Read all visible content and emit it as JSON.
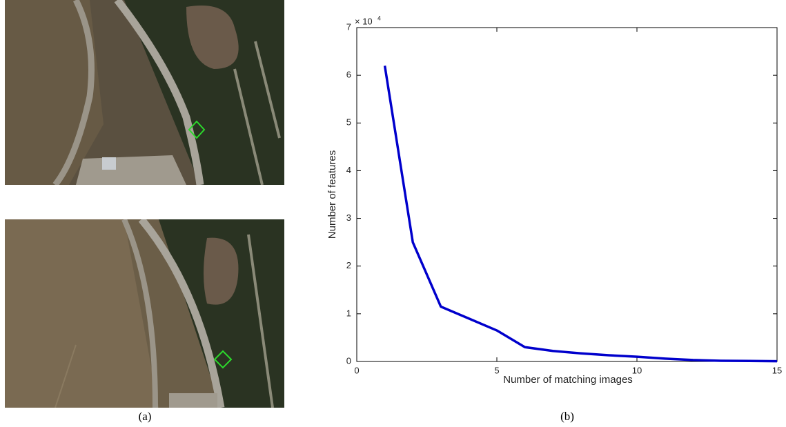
{
  "chart_data": {
    "type": "line",
    "xlabel": "Number of matching images",
    "ylabel": "Number of features",
    "y_multiplier": "× 10",
    "y_multiplier_exp": "4",
    "x": [
      1,
      2,
      3,
      4,
      5,
      6,
      7,
      8,
      9,
      10,
      11,
      12,
      13,
      14,
      15
    ],
    "series": [
      {
        "color": "#0000cc",
        "values": [
          6.2,
          2.5,
          1.15,
          0.9,
          0.65,
          0.3,
          0.22,
          0.17,
          0.13,
          0.1,
          0.06,
          0.03,
          0.015,
          0.01,
          0.005
        ]
      }
    ],
    "xlim": [
      0,
      15
    ],
    "xticks": [
      0,
      5,
      10,
      15
    ],
    "ylim": [
      0,
      7
    ],
    "yticks": [
      0,
      1,
      2,
      3,
      4,
      5,
      6,
      7
    ]
  },
  "captions": [
    "(a)",
    "(b)"
  ]
}
